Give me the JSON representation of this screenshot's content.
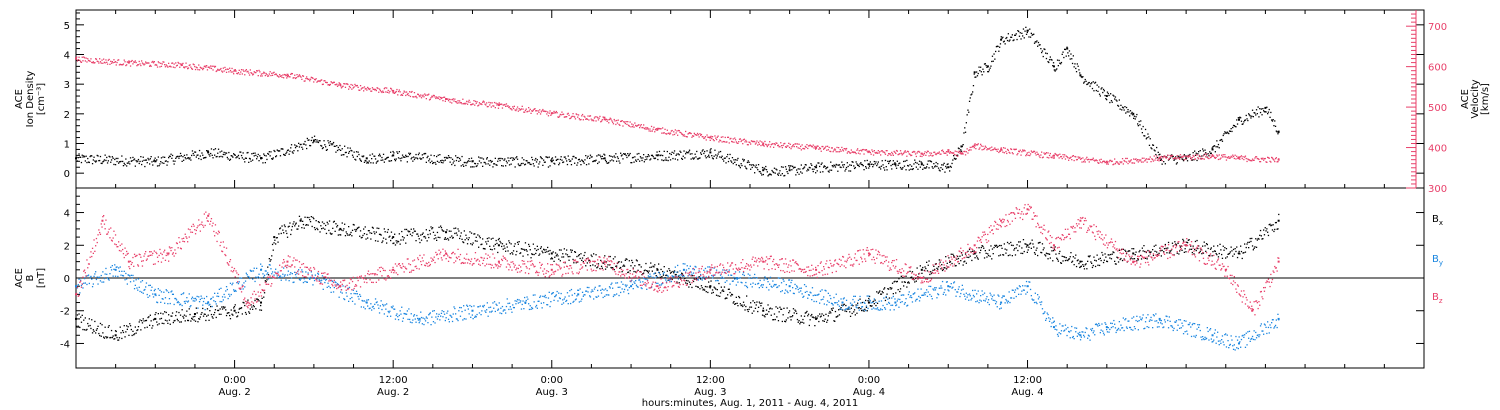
{
  "chart_data": [
    {
      "type": "scatter",
      "panel": "top",
      "ylabel_left": [
        "ACE",
        "Ion Density",
        "[cm⁻³]"
      ],
      "ylabel_right": [
        "ACE",
        "Velocity",
        "[km/s]"
      ],
      "y_left_ticks": [
        "0",
        "1",
        "2",
        "3",
        "4",
        "5"
      ],
      "y_right_ticks": [
        "300",
        "400",
        "500",
        "600",
        "700"
      ],
      "ylim_left": [
        -0.5,
        5.5
      ],
      "ylim_right": [
        300,
        740
      ],
      "left_color": "#000000",
      "right_color": "#e8406a",
      "series": [
        {
          "name": "",
          "axis": "left",
          "color": "#000000",
          "x": [
            0,
            6,
            10,
            14,
            18,
            22,
            24,
            30,
            36,
            40,
            44,
            48,
            52,
            54,
            56,
            60,
            62,
            64,
            66,
            67,
            68,
            69,
            70,
            72,
            74,
            75,
            76,
            78,
            80,
            82,
            84,
            86,
            88,
            90,
            91
          ],
          "y": [
            0.5,
            0.4,
            0.7,
            0.5,
            1.1,
            0.5,
            0.6,
            0.4,
            0.4,
            0.5,
            0.6,
            0.7,
            0.1,
            0.1,
            0.2,
            0.3,
            0.3,
            0.3,
            0.2,
            0.9,
            3.4,
            3.6,
            4.5,
            4.8,
            3.6,
            4.2,
            3.3,
            2.6,
            2.0,
            0.5,
            0.5,
            0.8,
            1.8,
            2.2,
            1.4
          ]
        },
        {
          "name": "",
          "axis": "right",
          "color": "#e8406a",
          "x": [
            0,
            4,
            8,
            12,
            16,
            20,
            24,
            28,
            32,
            36,
            40,
            44,
            48,
            52,
            56,
            60,
            64,
            66,
            67,
            68,
            70,
            74,
            78,
            82,
            86,
            88,
            91
          ],
          "y": [
            620,
            610,
            605,
            590,
            580,
            555,
            540,
            520,
            505,
            485,
            470,
            445,
            425,
            410,
            400,
            390,
            385,
            390,
            385,
            405,
            395,
            380,
            365,
            375,
            380,
            375,
            370
          ]
        }
      ]
    },
    {
      "type": "scatter",
      "panel": "bottom",
      "ylabel": [
        "ACE",
        "B",
        "[nT]"
      ],
      "y_ticks": [
        "-4",
        "-2",
        "0",
        "2",
        "4"
      ],
      "ylim": [
        -5.5,
        5.5
      ],
      "legend": [
        "B",
        "B",
        "B"
      ],
      "legend_sub": [
        "x",
        "y",
        "z"
      ],
      "legend_placement": "right",
      "series": [
        {
          "name": "Bx",
          "color": "#000000",
          "x": [
            0,
            3,
            6,
            9,
            12,
            14,
            15,
            17,
            20,
            24,
            28,
            32,
            36,
            40,
            44,
            48,
            52,
            56,
            60,
            64,
            68,
            72,
            76,
            80,
            84,
            88,
            91
          ],
          "y": [
            -2.5,
            -3.5,
            -2.5,
            -2.2,
            -2.0,
            -1.5,
            2.5,
            3.5,
            3.0,
            2.5,
            2.8,
            2.0,
            1.5,
            1.0,
            0.5,
            -0.5,
            -2.0,
            -2.5,
            -1.5,
            0.5,
            1.5,
            2.0,
            1.0,
            1.5,
            2.0,
            1.5,
            3.5
          ]
        },
        {
          "name": "By",
          "color": "#1a86e0",
          "x": [
            0,
            3,
            6,
            10,
            14,
            18,
            22,
            26,
            30,
            34,
            38,
            42,
            46,
            50,
            54,
            58,
            62,
            66,
            70,
            72,
            74,
            76,
            78,
            82,
            86,
            88,
            91
          ],
          "y": [
            -0.5,
            0.5,
            -1.0,
            -1.5,
            0.5,
            0.0,
            -1.5,
            -2.5,
            -2.0,
            -1.5,
            -1.0,
            -0.5,
            0.5,
            0.0,
            -0.5,
            -1.5,
            -1.5,
            -0.5,
            -1.5,
            -0.5,
            -3.0,
            -3.5,
            -3.0,
            -2.5,
            -3.5,
            -4.0,
            -2.5
          ]
        },
        {
          "name": "Bz",
          "color": "#e8406a",
          "x": [
            0,
            2,
            4,
            7,
            10,
            13,
            16,
            20,
            24,
            28,
            32,
            36,
            40,
            44,
            48,
            52,
            56,
            60,
            64,
            68,
            70,
            72,
            74,
            76,
            80,
            84,
            87,
            89,
            91
          ],
          "y": [
            -1.0,
            3.5,
            1.0,
            1.5,
            3.8,
            -1.5,
            1.0,
            -0.5,
            0.5,
            1.5,
            1.0,
            0.5,
            1.0,
            -0.5,
            0.5,
            1.0,
            0.5,
            1.5,
            0.0,
            2.0,
            3.5,
            4.2,
            2.0,
            3.5,
            1.0,
            2.0,
            0.5,
            -2.0,
            1.0
          ]
        }
      ]
    }
  ],
  "x_axis": {
    "xlim_hours": [
      0,
      102
    ],
    "ticks": [
      {
        "t": 12,
        "time": "0:00",
        "date": "Aug. 2"
      },
      {
        "t": 24,
        "time": "12:00",
        "date": "Aug. 2"
      },
      {
        "t": 36,
        "time": "0:00",
        "date": "Aug. 3"
      },
      {
        "t": 48,
        "time": "12:00",
        "date": "Aug. 3"
      },
      {
        "t": 60,
        "time": "0:00",
        "date": "Aug. 4"
      },
      {
        "t": 72,
        "time": "12:00",
        "date": "Aug. 4"
      }
    ],
    "xlabel": "hours:minutes, Aug.  1, 2011 - Aug.  4, 2011"
  }
}
